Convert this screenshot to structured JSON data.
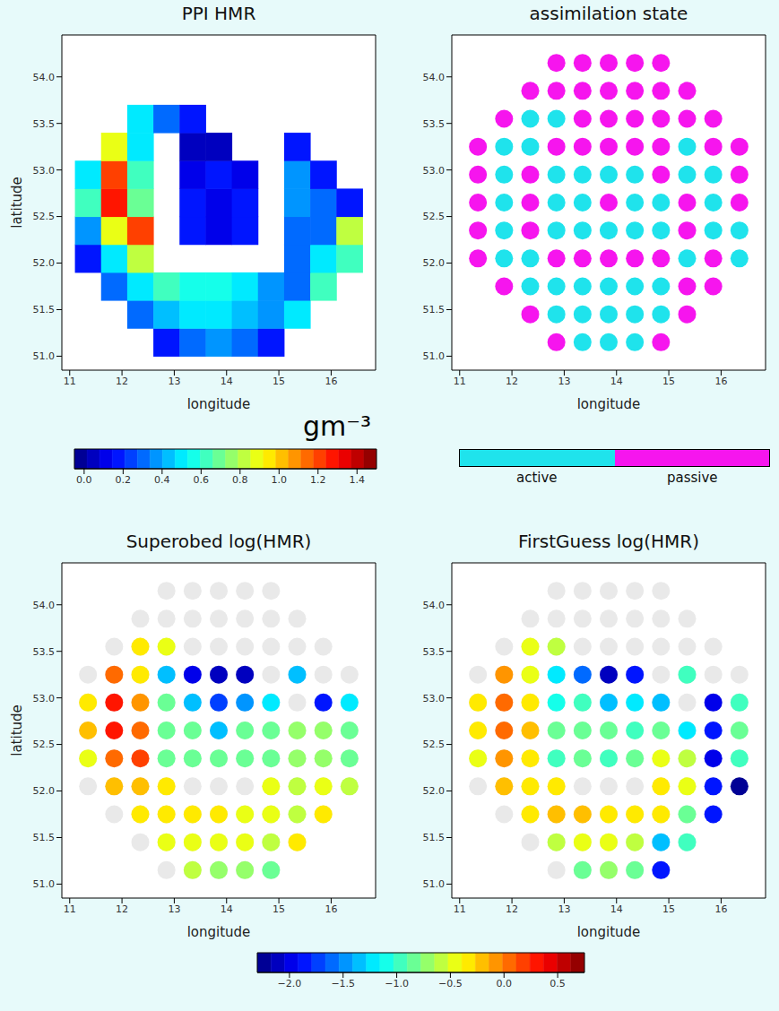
{
  "chart_data": [
    {
      "type": "heatmap",
      "title": "PPI HMR",
      "xlabel": "longitude",
      "ylabel": "latitude",
      "xlim": [
        10.85,
        16.85
      ],
      "xticks": [
        11,
        12,
        13,
        14,
        15,
        16
      ],
      "ylim": [
        50.85,
        54.45
      ],
      "yticks": [
        {
          "value": 51,
          "label": "51.0"
        },
        51.5,
        {
          "value": 52,
          "label": "52.0"
        },
        52.5,
        {
          "value": 53,
          "label": "53.0"
        },
        53.5,
        {
          "value": 54,
          "label": "54.0"
        }
      ],
      "lon": [
        11.35,
        11.85,
        12.35,
        12.85,
        13.35,
        13.85,
        14.35,
        14.85,
        15.35,
        15.85,
        16.35
      ],
      "lat": [
        51.15,
        51.45,
        51.75,
        52.05,
        52.35,
        52.65,
        52.95,
        53.25,
        53.55,
        53.85,
        54.15
      ],
      "values": [
        [
          null,
          null,
          null,
          0.2,
          0.3,
          0.4,
          0.3,
          0.2,
          null,
          null,
          null
        ],
        [
          null,
          null,
          0.3,
          0.45,
          0.5,
          0.5,
          0.45,
          0.35,
          0.5,
          null,
          null
        ],
        [
          null,
          0.3,
          0.5,
          0.6,
          0.55,
          0.55,
          0.5,
          0.4,
          0.3,
          0.6,
          null
        ],
        [
          0.2,
          0.5,
          0.8,
          null,
          null,
          null,
          null,
          null,
          0.3,
          0.5,
          0.6
        ],
        [
          0.4,
          0.9,
          1.2,
          null,
          0.15,
          0.1,
          0.15,
          null,
          0.3,
          0.3,
          0.8
        ],
        [
          0.6,
          1.3,
          0.7,
          null,
          0.2,
          0.1,
          0.2,
          null,
          0.4,
          0.3,
          0.2
        ],
        [
          0.5,
          1.2,
          0.6,
          null,
          0.1,
          0.15,
          0.1,
          null,
          0.4,
          0.2,
          null
        ],
        [
          null,
          0.9,
          0.5,
          null,
          0.05,
          0.05,
          null,
          null,
          0.2,
          null,
          null
        ],
        [
          null,
          null,
          0.5,
          0.3,
          0.2,
          null,
          null,
          null,
          null,
          null,
          null
        ],
        [
          null,
          null,
          null,
          null,
          null,
          null,
          null,
          null,
          null,
          null,
          null
        ],
        [
          null,
          null,
          null,
          null,
          null,
          null,
          null,
          null,
          null,
          null,
          null
        ]
      ],
      "colorbar": {
        "label": "gm⁻³",
        "range": [
          -0.05,
          1.5
        ],
        "ticks": [
          {
            "value": 0,
            "label": "0.0"
          },
          0.2,
          0.4,
          0.6,
          0.8,
          {
            "value": 1,
            "label": "1.0"
          },
          1.2,
          1.4
        ]
      }
    },
    {
      "type": "scatter",
      "title": "assimilation state",
      "xlabel": "longitude",
      "xlim": [
        10.85,
        16.85
      ],
      "xticks": [
        11,
        12,
        13,
        14,
        15,
        16
      ],
      "ylim": [
        50.85,
        54.45
      ],
      "yticks": [
        {
          "value": 51,
          "label": "51.0"
        },
        51.5,
        {
          "value": 52,
          "label": "52.0"
        },
        52.5,
        {
          "value": 53,
          "label": "53.0"
        },
        53.5,
        {
          "value": 54,
          "label": "54.0"
        }
      ],
      "lon": [
        11.35,
        11.85,
        12.35,
        12.85,
        13.35,
        13.85,
        14.35,
        14.85,
        15.35,
        15.85,
        16.35
      ],
      "lat": [
        51.15,
        51.45,
        51.75,
        52.05,
        52.35,
        52.65,
        52.95,
        53.25,
        53.55,
        53.85,
        54.15
      ],
      "categories": [
        "active",
        "passive"
      ],
      "colors": [
        "#1fe3ec",
        "#f615ee"
      ],
      "states": [
        [
          null,
          null,
          null,
          "passive",
          "active",
          "active",
          "active",
          "passive",
          null,
          null,
          null
        ],
        [
          null,
          null,
          "passive",
          "active",
          "active",
          "active",
          "active",
          "active",
          "passive",
          null,
          null
        ],
        [
          null,
          "passive",
          "active",
          "active",
          "active",
          "active",
          "active",
          "active",
          "passive",
          "passive",
          null
        ],
        [
          "passive",
          "active",
          "active",
          "passive",
          "passive",
          "passive",
          "passive",
          "passive",
          "active",
          "passive",
          "active"
        ],
        [
          "passive",
          "active",
          "passive",
          "active",
          "active",
          "active",
          "active",
          "active",
          "passive",
          "active",
          "active"
        ],
        [
          "passive",
          "active",
          "passive",
          "active",
          "active",
          "passive",
          "active",
          "active",
          "passive",
          "active",
          "passive"
        ],
        [
          "passive",
          "active",
          "passive",
          "active",
          "active",
          "active",
          "active",
          "passive",
          "active",
          "active",
          "passive"
        ],
        [
          "passive",
          "active",
          "active",
          "passive",
          "passive",
          "passive",
          "passive",
          "passive",
          "active",
          "passive",
          "passive"
        ],
        [
          null,
          "passive",
          "active",
          "active",
          "passive",
          "passive",
          "passive",
          "passive",
          "passive",
          "passive",
          null
        ],
        [
          null,
          null,
          "passive",
          "passive",
          "passive",
          "passive",
          "passive",
          "passive",
          "passive",
          null,
          null
        ],
        [
          null,
          null,
          null,
          "passive",
          "passive",
          "passive",
          "passive",
          "passive",
          null,
          null,
          null
        ]
      ]
    },
    {
      "type": "scatter",
      "title": "Superobed log(HMR)",
      "xlabel": "longitude",
      "ylabel": "latitude",
      "xlim": [
        10.85,
        16.85
      ],
      "xticks": [
        11,
        12,
        13,
        14,
        15,
        16
      ],
      "ylim": [
        50.85,
        54.45
      ],
      "yticks": [
        {
          "value": 51,
          "label": "51.0"
        },
        51.5,
        {
          "value": 52,
          "label": "52.0"
        },
        52.5,
        {
          "value": 53,
          "label": "53.0"
        },
        53.5,
        {
          "value": 54,
          "label": "54.0"
        }
      ],
      "lon": [
        11.35,
        11.85,
        12.35,
        12.85,
        13.35,
        13.85,
        14.35,
        14.85,
        15.35,
        15.85,
        16.35
      ],
      "lat": [
        51.15,
        51.45,
        51.75,
        52.05,
        52.35,
        52.65,
        52.95,
        53.25,
        53.55,
        53.85,
        54.15
      ],
      "values": [
        [
          null,
          null,
          null,
          null,
          -0.6,
          -0.7,
          -0.7,
          -0.8,
          null,
          null,
          null
        ],
        [
          null,
          null,
          null,
          -0.4,
          -0.45,
          -0.5,
          -0.5,
          -0.6,
          -0.3,
          null,
          null
        ],
        [
          null,
          null,
          -0.35,
          -0.3,
          -0.35,
          -0.35,
          -0.4,
          -0.5,
          -0.6,
          -0.3,
          null
        ],
        [
          null,
          -0.2,
          -0.15,
          -0.3,
          null,
          null,
          null,
          -0.45,
          -0.6,
          -0.4,
          -0.6
        ],
        [
          -0.4,
          0,
          0.2,
          -0.8,
          -0.9,
          -0.85,
          -0.9,
          -0.8,
          -0.7,
          -0.7,
          -0.8
        ],
        [
          -0.2,
          0.3,
          0.1,
          -0.9,
          -0.8,
          -1.3,
          -0.8,
          -0.9,
          -0.7,
          -0.75,
          -0.9
        ],
        [
          -0.3,
          0.35,
          -0.05,
          -0.9,
          -1.4,
          -1.7,
          -1.5,
          -1.2,
          null,
          -1.9,
          -1.2
        ],
        [
          null,
          0,
          -0.3,
          -1.3,
          -2,
          -2.1,
          -2.1,
          null,
          -1.4,
          null,
          null
        ],
        [
          null,
          null,
          -0.3,
          -0.45,
          null,
          null,
          null,
          null,
          null,
          null,
          null
        ],
        [
          null,
          null,
          null,
          null,
          null,
          null,
          null,
          null,
          null,
          null,
          null
        ],
        [
          null,
          null,
          null,
          null,
          null,
          null,
          null,
          null,
          null,
          null,
          null
        ]
      ],
      "colorbar": {
        "range": [
          -2.3,
          0.75
        ],
        "ticks": [
          {
            "value": -2,
            "label": "−2.0"
          },
          {
            "value": -1.5,
            "label": "−1.5"
          },
          {
            "value": -1,
            "label": "−1.0"
          },
          {
            "value": -0.5,
            "label": "−0.5"
          },
          {
            "value": 0,
            "label": "0.0"
          },
          0.5
        ]
      }
    },
    {
      "type": "scatter",
      "title": "FirstGuess log(HMR)",
      "xlabel": "longitude",
      "xlim": [
        10.85,
        16.85
      ],
      "xticks": [
        11,
        12,
        13,
        14,
        15,
        16
      ],
      "ylim": [
        50.85,
        54.45
      ],
      "yticks": [
        {
          "value": 51,
          "label": "51.0"
        },
        51.5,
        {
          "value": 52,
          "label": "52.0"
        },
        52.5,
        {
          "value": 53,
          "label": "53.0"
        },
        53.5,
        {
          "value": 54,
          "label": "54.0"
        }
      ],
      "lon": [
        11.35,
        11.85,
        12.35,
        12.85,
        13.35,
        13.85,
        14.35,
        14.85,
        15.35,
        15.85,
        16.35
      ],
      "lat": [
        51.15,
        51.45,
        51.75,
        52.05,
        52.35,
        52.65,
        52.95,
        53.25,
        53.55,
        53.85,
        54.15
      ],
      "values": [
        [
          null,
          null,
          null,
          null,
          -0.8,
          -0.75,
          -0.9,
          -1.8,
          null,
          null,
          null
        ],
        [
          null,
          null,
          null,
          -0.6,
          -0.5,
          -0.45,
          -0.55,
          -1.3,
          -1,
          null,
          null
        ],
        [
          null,
          null,
          -0.3,
          -0.25,
          -0.25,
          -0.3,
          -0.3,
          -0.35,
          -0.9,
          -1.9,
          null
        ],
        [
          null,
          -0.2,
          -0.3,
          -0.35,
          null,
          null,
          null,
          -0.3,
          -0.5,
          -1.8,
          -2.2
        ],
        [
          -0.4,
          -0.05,
          -0.3,
          -0.95,
          -0.9,
          -1,
          -0.9,
          -0.5,
          -0.6,
          -2,
          -1
        ],
        [
          -0.3,
          0.1,
          -0.2,
          -0.9,
          -0.85,
          -0.8,
          -0.95,
          -0.9,
          -1.2,
          -1.8,
          -0.9
        ],
        [
          -0.35,
          0.05,
          -0.3,
          -1.1,
          -1,
          -1.4,
          -1.2,
          -1.3,
          null,
          -2,
          -1
        ],
        [
          null,
          -0.1,
          -0.4,
          -1.2,
          -1.6,
          -2.1,
          -1.8,
          null,
          -1,
          null,
          null
        ],
        [
          null,
          null,
          -0.5,
          -0.55,
          null,
          null,
          null,
          null,
          null,
          null,
          null
        ],
        [
          null,
          null,
          null,
          null,
          null,
          null,
          null,
          null,
          null,
          null,
          null
        ],
        [
          null,
          null,
          null,
          null,
          null,
          null,
          null,
          null,
          null,
          null,
          null
        ]
      ]
    }
  ]
}
